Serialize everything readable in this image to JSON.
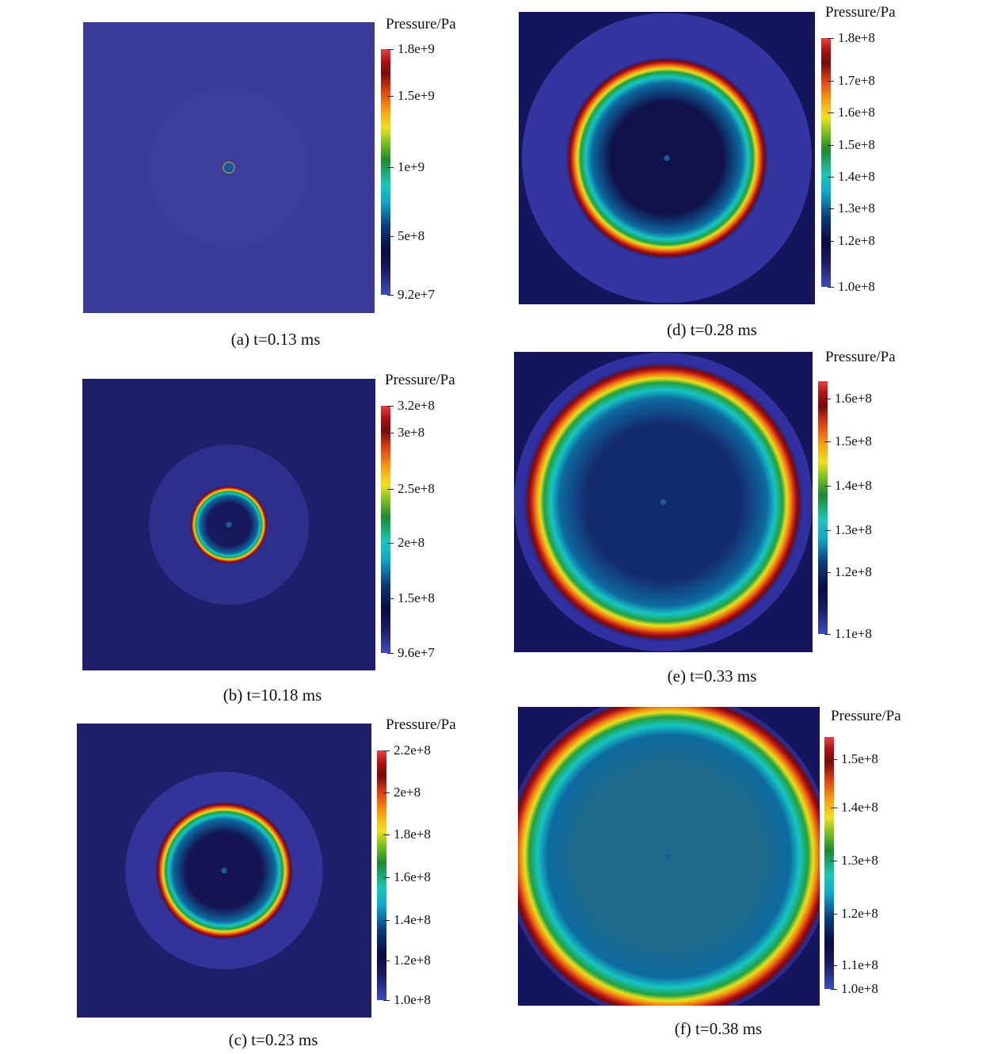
{
  "colorbar_gradient": "linear-gradient(to top, #3b4cc0 0%, #1a1a66 10%, #0a0a40 18%, #0b3b7c 28%, #10a8c8 38%, #18c8b8 45%, #1e8a2e 55%, #7ac020 62%, #f0e020 68%, #f8a010 75%, #e04010 83%, #7a0a0a 90%, #b01010 95%, #e84040 100%)",
  "panels": [
    {
      "id": "a",
      "cbar_title": "Pressure/Pa",
      "ticks": [
        "1.8e+9",
        "1.5e+9",
        "1e+9",
        "5e+8",
        "9.2e+7"
      ],
      "caption": "(a) t=0.13 ms",
      "background": "#3a3a9a",
      "halo": "#3d3d9e",
      "dark": "#3a3a9a",
      "ring_frac": 0.04
    },
    {
      "id": "b",
      "cbar_title": "Pressure/Pa",
      "ticks": [
        "3.2e+8",
        "3e+8",
        "2.5e+8",
        "2e+8",
        "1.5e+8",
        "9.6e+7"
      ],
      "caption": "(b) t=10.18 ms",
      "background": "#1e1e6a",
      "halo": "#2e2e8c",
      "dark": "#18185c",
      "ring_frac": 0.24
    },
    {
      "id": "c",
      "cbar_title": "Pressure/Pa",
      "ticks": [
        "2.2e+8",
        "2e+8",
        "1.8e+8",
        "1.6e+8",
        "1.4e+8",
        "1.2e+8",
        "1.0e+8"
      ],
      "caption": "(c) t=0.23 ms",
      "background": "#1e1e6a",
      "halo": "#33339a",
      "dark": "#141452",
      "ring_frac": 0.42
    },
    {
      "id": "d",
      "cbar_title": "Pressure/Pa",
      "ticks": [
        "1.8e+8",
        "1.7e+8",
        "1.6e+8",
        "1.5e+8",
        "1.4e+8",
        "1.3e+8",
        "1.2e+8",
        "1.0e+8"
      ],
      "caption": "(d) t=0.28 ms",
      "background": "#15155e",
      "halo": "#3434a0",
      "dark": "#10104a",
      "ring_frac": 0.62
    },
    {
      "id": "e",
      "cbar_title": "Pressure/Pa",
      "ticks": [
        "1.6e+8",
        "1.5e+8",
        "1.4e+8",
        "1.3e+8",
        "1.2e+8",
        "1.1e+8"
      ],
      "caption": "(e) t=0.33 ms",
      "background": "#15155e",
      "halo": "#3030a0",
      "dark": "#142a6e",
      "ring_frac": 0.84
    },
    {
      "id": "f",
      "cbar_title": "Pressure/Pa",
      "ticks": [
        "1.5e+8",
        "1.4e+8",
        "1.3e+8",
        "1.2e+8",
        "1.1e+8",
        "1.0e+8"
      ],
      "caption": "(f) t=0.38 ms",
      "background": "#15155e",
      "halo": "#2a2a90",
      "dark": "#1f6a8a",
      "ring_frac": 0.98
    }
  ]
}
